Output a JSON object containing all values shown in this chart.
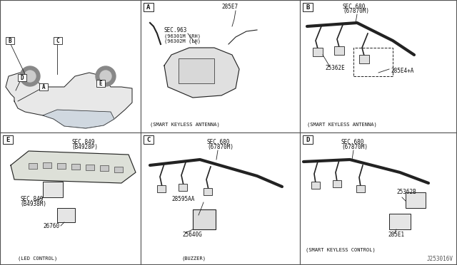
{
  "bg_color": "#f5f5f0",
  "border_color": "#333333",
  "line_color": "#222222",
  "text_color": "#111111",
  "font_size_label": 5.5,
  "font_size_caption": 5.0,
  "font_size_section": 6.5,
  "watermark": "J253016V",
  "labels": {
    "A_panel": {
      "part1": "285E7",
      "part2": "SEC.963",
      "part2b": "(96301M (RH)",
      "part2c": "(96302M (LH)",
      "caption": "(SMART KEYLESS ANTENNA)"
    },
    "B_panel": {
      "part1": "SEC.680",
      "part1b": "(67870M)",
      "part2": "25362E",
      "part3": "285E4+A",
      "caption": "(SMART KEYLESS ANTENNA)"
    },
    "E_panel": {
      "part1": "SEC.849",
      "part1b": "(B4928P)",
      "part2": "SEC.849",
      "part2b": "(B4938M)",
      "part3": "26760",
      "caption": "(LED CONTROL)"
    },
    "C_panel": {
      "part1": "SEC.680",
      "part1b": "(67870M)",
      "part2": "28595AA",
      "part3": "25640G",
      "caption": "(BUZZER)"
    },
    "D_panel": {
      "part1": "SEC.680",
      "part1b": "(67870M)",
      "part2": "25362B",
      "part3": "285E1",
      "caption": "(SMART KEYLESS CONTROL)"
    }
  },
  "overview_labels": [
    "A",
    "B",
    "C",
    "D",
    "E"
  ]
}
